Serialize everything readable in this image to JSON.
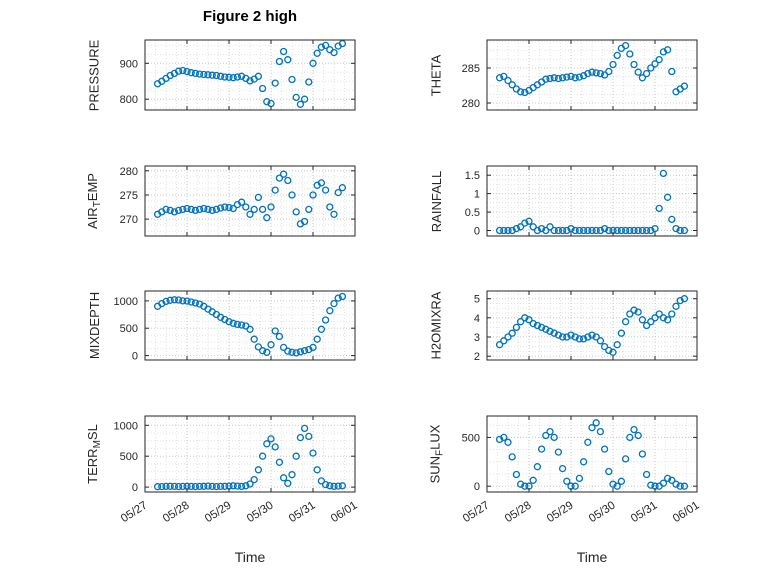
{
  "chart_data": {
    "type": "scatter",
    "title": "Figure 2 high",
    "xlabel": "Time",
    "marker_color": "#0072BD",
    "grid": true,
    "minor_grid": true,
    "legend": "none",
    "xlim": [
      0,
      5
    ],
    "x_tick_positions": [
      0,
      1,
      2,
      3,
      4,
      5
    ],
    "x_tick_labels": [
      "05/27",
      "05/28",
      "05/29",
      "05/30",
      "05/31",
      "06/01"
    ],
    "x_values_unit": "days after 05/27",
    "x": [
      0.3,
      0.4,
      0.5,
      0.6,
      0.7,
      0.8,
      0.9,
      1.0,
      1.1,
      1.2,
      1.3,
      1.4,
      1.5,
      1.6,
      1.7,
      1.8,
      1.9,
      2.0,
      2.1,
      2.2,
      2.3,
      2.4,
      2.5,
      2.6,
      2.7,
      2.8,
      2.9,
      3.0,
      3.1,
      3.2,
      3.3,
      3.4,
      3.5,
      3.6,
      3.7,
      3.8,
      3.9,
      4.0,
      4.1,
      4.2,
      4.3,
      4.4,
      4.5,
      4.6,
      4.7
    ],
    "subplots": [
      {
        "name": "PRESSURE",
        "ylabel": "PRESSURE",
        "ylabel_parts": [
          {
            "text": "PRESSURE",
            "sub": false
          }
        ],
        "yticks": [
          800,
          900
        ],
        "ytick_labels": [
          "800",
          "900"
        ],
        "ylim": [
          770,
          965
        ],
        "values": [
          843,
          850,
          858,
          866,
          872,
          878,
          880,
          877,
          874,
          872,
          870,
          869,
          868,
          867,
          866,
          864,
          862,
          861,
          860,
          862,
          864,
          858,
          851,
          856,
          864,
          830,
          793,
          788,
          845,
          905,
          933,
          910,
          855,
          805,
          786,
          800,
          848,
          900,
          928,
          945,
          950,
          938,
          930,
          948,
          955
        ]
      },
      {
        "name": "THETA",
        "ylabel": "THETA",
        "ylabel_parts": [
          {
            "text": "THETA",
            "sub": false
          }
        ],
        "yticks": [
          280,
          285
        ],
        "ytick_labels": [
          "280",
          "285"
        ],
        "ylim": [
          279,
          289
        ],
        "values": [
          283.6,
          283.8,
          283.2,
          282.6,
          282.0,
          281.6,
          281.5,
          281.8,
          282.2,
          282.6,
          283.0,
          283.4,
          283.5,
          283.6,
          283.5,
          283.6,
          283.7,
          283.8,
          283.6,
          283.7,
          283.9,
          284.2,
          284.4,
          284.3,
          284.2,
          284.0,
          284.5,
          285.5,
          286.8,
          287.8,
          288.2,
          287.0,
          285.5,
          284.4,
          283.6,
          284.2,
          285.0,
          285.6,
          286.2,
          287.3,
          287.6,
          284.5,
          281.6,
          282.0,
          282.4
        ]
      },
      {
        "name": "AIR_TEMP",
        "ylabel": "AIR_TEMP",
        "ylabel_parts": [
          {
            "text": "AIR",
            "sub": false
          },
          {
            "text": "T",
            "sub": true
          },
          {
            "text": "EMP",
            "sub": false
          }
        ],
        "yticks": [
          270,
          275,
          280
        ],
        "ytick_labels": [
          "270",
          "275",
          "280"
        ],
        "ylim": [
          266.5,
          281
        ],
        "values": [
          271.0,
          271.5,
          272.0,
          271.8,
          271.5,
          271.8,
          272.0,
          272.2,
          272.0,
          271.8,
          272.0,
          272.2,
          272.0,
          271.8,
          272.0,
          272.3,
          272.5,
          272.4,
          272.2,
          273.0,
          273.5,
          272.5,
          271.0,
          272.0,
          274.5,
          272.0,
          270.3,
          272.5,
          276.0,
          278.5,
          279.3,
          278.0,
          275.0,
          271.5,
          269.0,
          269.5,
          272.0,
          275.0,
          277.0,
          277.5,
          276.0,
          272.5,
          271.0,
          275.5,
          276.5
        ]
      },
      {
        "name": "RAINFALL",
        "ylabel": "RAINFALL",
        "ylabel_parts": [
          {
            "text": "RAINFALL",
            "sub": false
          }
        ],
        "yticks": [
          0,
          0.5,
          1,
          1.5
        ],
        "ytick_labels": [
          "0",
          "0.5",
          "1",
          "1.5"
        ],
        "ylim": [
          -0.15,
          1.75
        ],
        "values": [
          0,
          0,
          0,
          0,
          0.05,
          0.1,
          0.2,
          0.25,
          0.1,
          0,
          0.05,
          0,
          0.1,
          0,
          0,
          0,
          0,
          0.05,
          0,
          0,
          0,
          0,
          0,
          0,
          0,
          0.05,
          0,
          0,
          0,
          0,
          0,
          0,
          0,
          0,
          0,
          0,
          0,
          0.05,
          0.6,
          1.55,
          0.9,
          0.3,
          0.05,
          0,
          0
        ]
      },
      {
        "name": "MIXDEPTH",
        "ylabel": "MIXDEPTH",
        "ylabel_parts": [
          {
            "text": "MIXDEPTH",
            "sub": false
          }
        ],
        "yticks": [
          0,
          500,
          1000
        ],
        "ytick_labels": [
          "0",
          "500",
          "1000"
        ],
        "ylim": [
          -80,
          1180
        ],
        "values": [
          900,
          950,
          990,
          1010,
          1020,
          1015,
          1000,
          995,
          980,
          960,
          940,
          900,
          850,
          800,
          750,
          700,
          660,
          620,
          590,
          570,
          560,
          540,
          480,
          300,
          160,
          90,
          60,
          200,
          450,
          350,
          150,
          80,
          60,
          50,
          70,
          90,
          110,
          150,
          300,
          480,
          650,
          820,
          950,
          1050,
          1080
        ]
      },
      {
        "name": "H2OMIXRA",
        "ylabel": "H2OMIXRA",
        "ylabel_parts": [
          {
            "text": "H2OMIXRA",
            "sub": false
          }
        ],
        "yticks": [
          2,
          3,
          4,
          5
        ],
        "ytick_labels": [
          "2",
          "3",
          "4",
          "5"
        ],
        "ylim": [
          1.8,
          5.4
        ],
        "values": [
          2.6,
          2.8,
          3.0,
          3.2,
          3.5,
          3.8,
          4.0,
          3.9,
          3.7,
          3.6,
          3.5,
          3.4,
          3.3,
          3.2,
          3.1,
          3.0,
          3.0,
          3.1,
          3.0,
          2.9,
          2.9,
          3.0,
          3.1,
          3.0,
          2.8,
          2.5,
          2.3,
          2.2,
          2.6,
          3.2,
          3.8,
          4.2,
          4.4,
          4.3,
          3.9,
          3.6,
          3.8,
          4.0,
          4.2,
          4.0,
          3.9,
          4.2,
          4.6,
          4.9,
          5.0
        ]
      },
      {
        "name": "TERR_MSL",
        "ylabel": "TERR_MSL",
        "ylabel_parts": [
          {
            "text": "TERR",
            "sub": false
          },
          {
            "text": "M",
            "sub": true
          },
          {
            "text": "SL",
            "sub": false
          }
        ],
        "yticks": [
          0,
          500,
          1000
        ],
        "ytick_labels": [
          "0",
          "500",
          "1000"
        ],
        "ylim": [
          -80,
          1150
        ],
        "values": [
          5,
          8,
          10,
          12,
          10,
          8,
          10,
          12,
          10,
          8,
          10,
          12,
          15,
          10,
          8,
          10,
          12,
          15,
          20,
          15,
          10,
          20,
          50,
          120,
          280,
          500,
          700,
          780,
          650,
          400,
          150,
          60,
          200,
          500,
          800,
          950,
          820,
          550,
          280,
          100,
          40,
          20,
          10,
          15,
          20
        ]
      },
      {
        "name": "SUN_FLUX",
        "ylabel": "SUN_FLUX",
        "ylabel_parts": [
          {
            "text": "SUN",
            "sub": false
          },
          {
            "text": "F",
            "sub": true
          },
          {
            "text": "LUX",
            "sub": false
          }
        ],
        "yticks": [
          0,
          500
        ],
        "ytick_labels": [
          "0",
          "500"
        ],
        "ylim": [
          -60,
          720
        ],
        "values": [
          480,
          500,
          450,
          300,
          120,
          20,
          0,
          0,
          60,
          200,
          380,
          520,
          560,
          500,
          350,
          180,
          50,
          0,
          0,
          80,
          250,
          450,
          600,
          650,
          560,
          380,
          150,
          20,
          0,
          50,
          280,
          500,
          580,
          520,
          330,
          120,
          10,
          0,
          0,
          30,
          80,
          60,
          20,
          0,
          0
        ]
      }
    ]
  }
}
